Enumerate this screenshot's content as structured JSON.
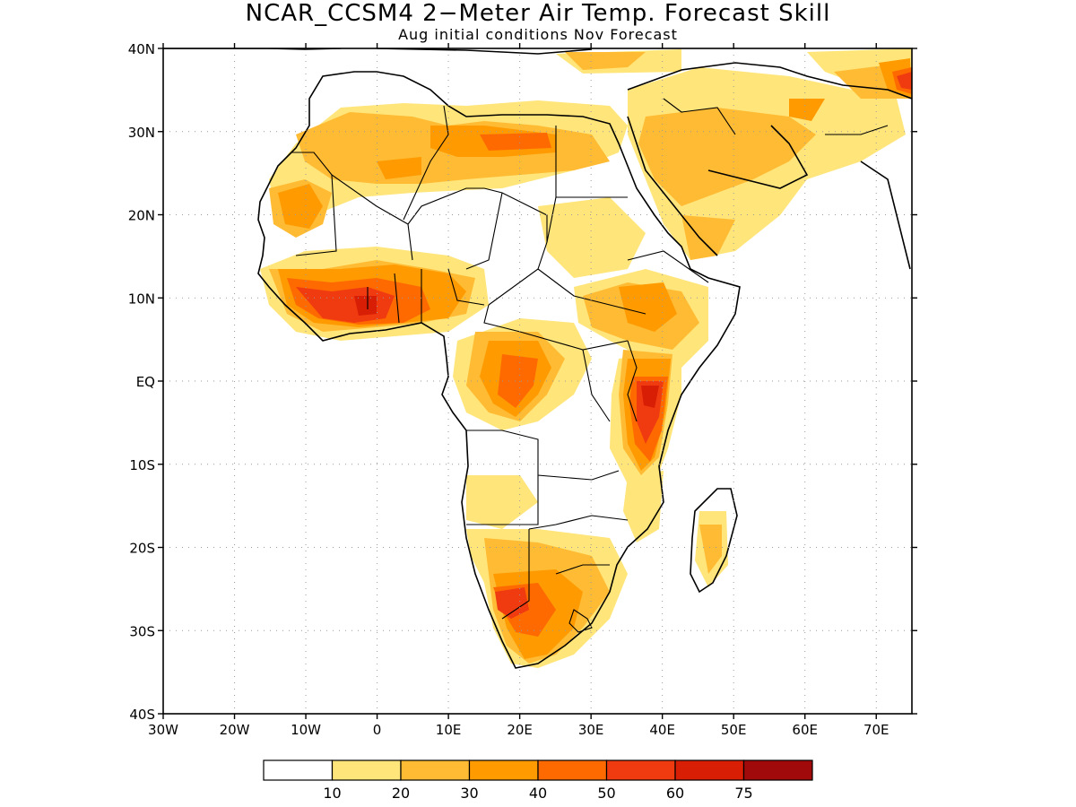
{
  "title": "NCAR_CCSM4 2−Meter Air Temp. Forecast Skill",
  "subtitle": "Aug initial conditions  Nov Forecast",
  "map": {
    "lon_range": [
      -30,
      75
    ],
    "lat_range": [
      -40,
      40
    ],
    "lat_ticks": [
      {
        "value": 40,
        "label": "40N"
      },
      {
        "value": 30,
        "label": "30N"
      },
      {
        "value": 20,
        "label": "20N"
      },
      {
        "value": 10,
        "label": "10N"
      },
      {
        "value": 0,
        "label": "EQ"
      },
      {
        "value": -10,
        "label": "10S"
      },
      {
        "value": -20,
        "label": "20S"
      },
      {
        "value": -30,
        "label": "30S"
      },
      {
        "value": -40,
        "label": "40S"
      }
    ],
    "lon_ticks": [
      {
        "value": -30,
        "label": "30W"
      },
      {
        "value": -20,
        "label": "20W"
      },
      {
        "value": -10,
        "label": "10W"
      },
      {
        "value": 0,
        "label": "0"
      },
      {
        "value": 10,
        "label": "10E"
      },
      {
        "value": 20,
        "label": "20E"
      },
      {
        "value": 30,
        "label": "30E"
      },
      {
        "value": 40,
        "label": "40E"
      },
      {
        "value": 50,
        "label": "50E"
      },
      {
        "value": 60,
        "label": "60E"
      },
      {
        "value": 70,
        "label": "70E"
      }
    ],
    "gridlines": "dotted"
  },
  "colorbar": {
    "colors": [
      "#ffffff",
      "#ffe57a",
      "#ffbb33",
      "#ff9a00",
      "#ff6a00",
      "#f03a10",
      "#d81e05",
      "#a10a0a"
    ],
    "labels": [
      "10",
      "20",
      "30",
      "40",
      "50",
      "60",
      "75"
    ]
  }
}
